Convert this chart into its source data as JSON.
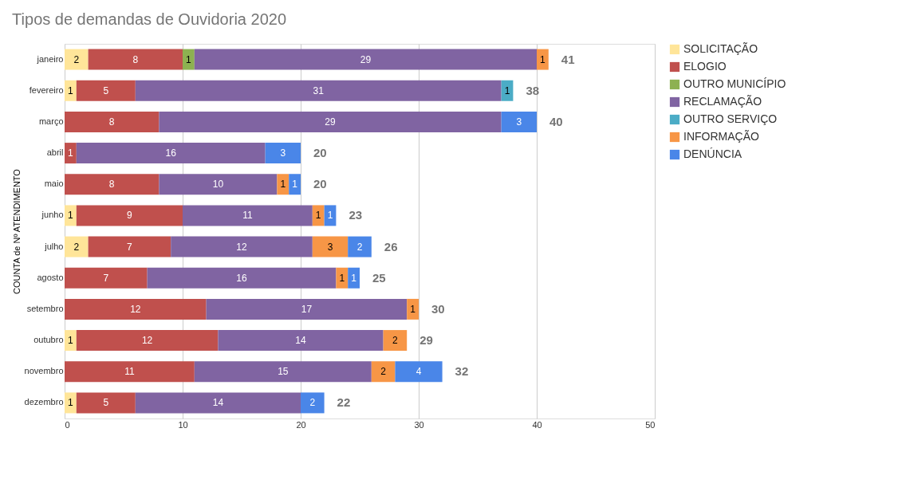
{
  "chart_data": {
    "type": "bar",
    "orientation": "horizontal",
    "stacked": true,
    "title": "Tipos de demandas de Ouvidoria 2020",
    "ylabel": "COUNTA de Nº ATENDIMENTO",
    "categories": [
      "janeiro",
      "fevereiro",
      "março",
      "abril",
      "maio",
      "junho",
      "julho",
      "agosto",
      "setembro",
      "outubro",
      "novembro",
      "dezembro"
    ],
    "series": [
      {
        "name": "SOLICITAÇÃO",
        "color": "#ffe599",
        "values": [
          2,
          1,
          null,
          null,
          null,
          1,
          2,
          null,
          null,
          1,
          null,
          1
        ]
      },
      {
        "name": "ELOGIO",
        "color": "#c0504d",
        "values": [
          8,
          5,
          8,
          1,
          8,
          9,
          7,
          7,
          12,
          12,
          11,
          5
        ]
      },
      {
        "name": "OUTRO MUNICÍPIO",
        "color": "#8db151",
        "values": [
          1,
          null,
          null,
          null,
          null,
          null,
          null,
          null,
          null,
          null,
          null,
          null
        ]
      },
      {
        "name": "RECLAMAÇÃO",
        "color": "#8064a2",
        "values": [
          29,
          31,
          29,
          16,
          10,
          11,
          12,
          16,
          17,
          14,
          15,
          14
        ]
      },
      {
        "name": "OUTRO SERVIÇO",
        "color": "#4bacc6",
        "values": [
          null,
          1,
          null,
          null,
          null,
          null,
          null,
          null,
          null,
          null,
          null,
          null
        ]
      },
      {
        "name": "INFORMAÇÃO",
        "color": "#f79646",
        "values": [
          1,
          null,
          null,
          null,
          1,
          1,
          3,
          1,
          1,
          2,
          2,
          null
        ]
      },
      {
        "name": "DENÚNCIA",
        "color": "#4a86e8",
        "values": [
          null,
          null,
          3,
          3,
          1,
          1,
          2,
          1,
          null,
          null,
          4,
          2
        ]
      }
    ],
    "totals": [
      "41",
      "38",
      "40",
      "20",
      "20",
      "23",
      "26",
      "25",
      "30",
      "29",
      "32",
      "22"
    ],
    "xlim": [
      0,
      50
    ],
    "xticks": [
      0,
      10,
      20,
      30,
      40,
      50
    ],
    "grid": "x",
    "legend": "right",
    "data_labels": true
  }
}
